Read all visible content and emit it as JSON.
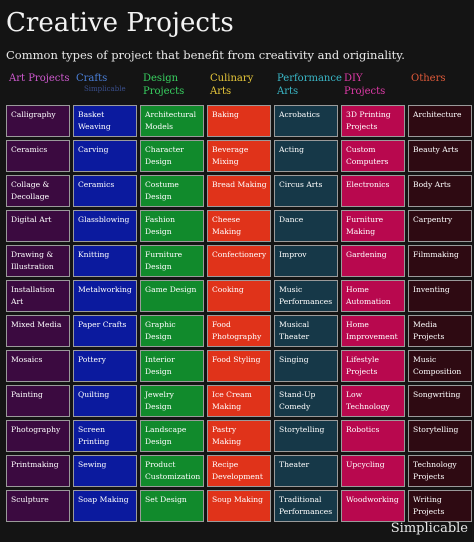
{
  "title": "Creative Projects",
  "subtitle": "Common types of project that benefit from creativity and originality.",
  "brand": "Simplicable",
  "columns": [
    {
      "header": "Art Projects",
      "header_color": "#d05ad0",
      "cell_color": "#3b0a40",
      "items": [
        "Calligraphy",
        "Ceramics",
        "Collage & Decollage",
        "Digital Art",
        "Drawing & Illustration",
        "Installation Art",
        "Mixed Media",
        "Mosaics",
        "Painting",
        "Photography",
        "Printmaking",
        "Sculpture"
      ]
    },
    {
      "header": "Crafts",
      "subheader": "Simplicable",
      "header_color": "#4a7fd8",
      "cell_color": "#0b1a9e",
      "items": [
        "Basket Weaving",
        "Carving",
        "Ceramics",
        "Glassblowing",
        "Knitting",
        "Metalworking",
        "Paper Crafts",
        "Pottery",
        "Quilting",
        "Screen Printing",
        "Sewing",
        "Soap Making"
      ]
    },
    {
      "header": "Design Projects",
      "header_color": "#38d060",
      "cell_color": "#118a2c",
      "items": [
        "Architectural Models",
        "Character Design",
        "Costume Design",
        "Fashion Design",
        "Furniture Design",
        "Game Design",
        "Graphic Design",
        "Interior Design",
        "Jewelry Design",
        "Landscape Design",
        "Product Customization",
        "Set Design"
      ]
    },
    {
      "header": "Culinary Arts",
      "header_color": "#e8c83a",
      "cell_color": "#e0331a",
      "items": [
        "Baking",
        "Beverage Mixing",
        "Bread Making",
        "Cheese Making",
        "Confectionery",
        "Cooking",
        "Food Photography",
        "Food Styling",
        "Ice Cream Making",
        "Pastry Making",
        "Recipe Development",
        "Soup Making"
      ]
    },
    {
      "header": "Performance Arts",
      "header_color": "#3ab8c8",
      "cell_color": "#163848",
      "items": [
        "Acrobatics",
        "Acting",
        "Circus Arts",
        "Dance",
        "Improv",
        "Music Performances",
        "Musical Theater",
        "Singing",
        "Stand-Up Comedy",
        "Storytelling",
        "Theater",
        "Traditional Performances"
      ]
    },
    {
      "header": "DIY Projects",
      "header_color": "#e03aa8",
      "cell_color": "#b8084e",
      "items": [
        "3D Printing Projects",
        "Custom Computers",
        "Electronics",
        "Furniture Making",
        "Gardening",
        "Home Automation",
        "Home Improvement",
        "Lifestyle Projects",
        "Low Technology",
        "Robotics",
        "Upcycling",
        "Woodworking"
      ]
    },
    {
      "header": "Others",
      "header_color": "#e05a3a",
      "cell_color": "#2e0a12",
      "items": [
        "Architecture",
        "Beauty Arts",
        "Body Arts",
        "Carpentry",
        "Filmmaking",
        "Inventing",
        "Media Projects",
        "Music Composition",
        "Songwriting",
        "Storytelling",
        "Technology Projects",
        "Writing Projects"
      ]
    }
  ]
}
